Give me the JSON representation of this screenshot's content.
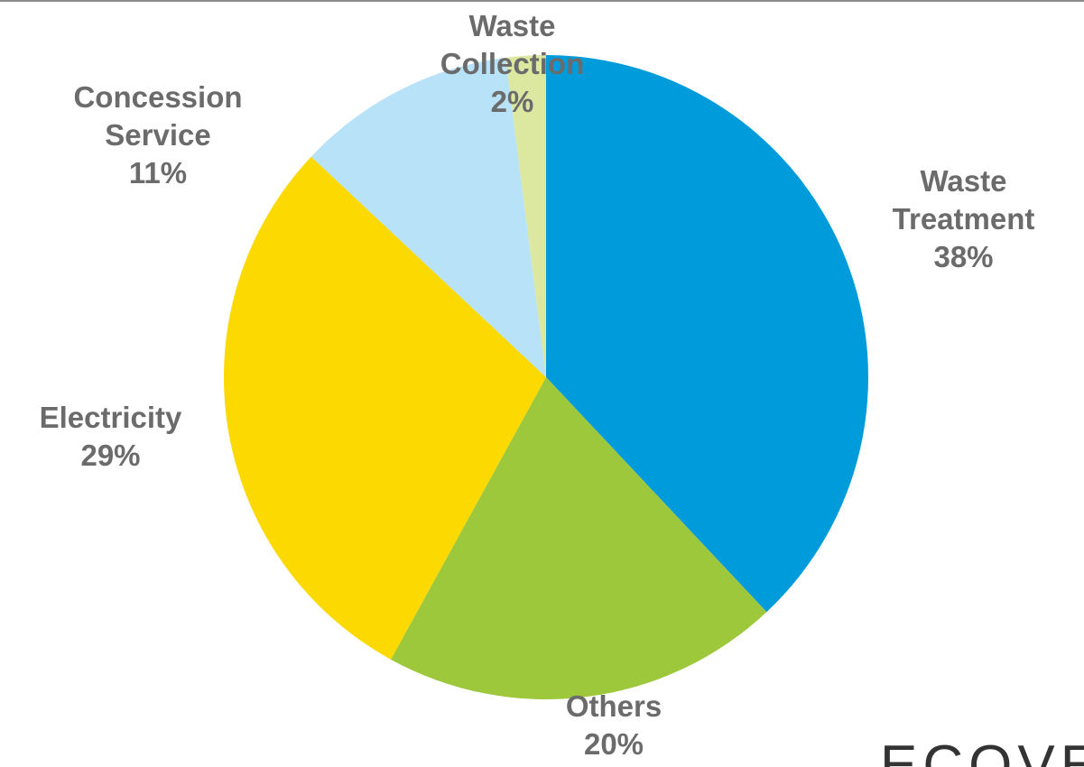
{
  "chart_data": {
    "type": "pie",
    "title": "",
    "start_angle_deg": 0,
    "direction": "clockwise",
    "legend": "none",
    "slices": [
      {
        "label_lines": [
          "Waste",
          "Treatment"
        ],
        "value": 38,
        "value_label": "38%",
        "color": "#009BDB"
      },
      {
        "label_lines": [
          "Others"
        ],
        "value": 20,
        "value_label": "20%",
        "color": "#9DC83C"
      },
      {
        "label_lines": [
          "Electricity"
        ],
        "value": 29,
        "value_label": "29%",
        "color": "#FCD900"
      },
      {
        "label_lines": [
          "Concession",
          "Service"
        ],
        "value": 11,
        "value_label": "11%",
        "color": "#B8E2F8"
      },
      {
        "label_lines": [
          "Waste",
          "Collection"
        ],
        "value": 2,
        "value_label": "2%",
        "color": "#DCE8A0"
      }
    ]
  },
  "brand": {
    "text": "ECOVE"
  }
}
